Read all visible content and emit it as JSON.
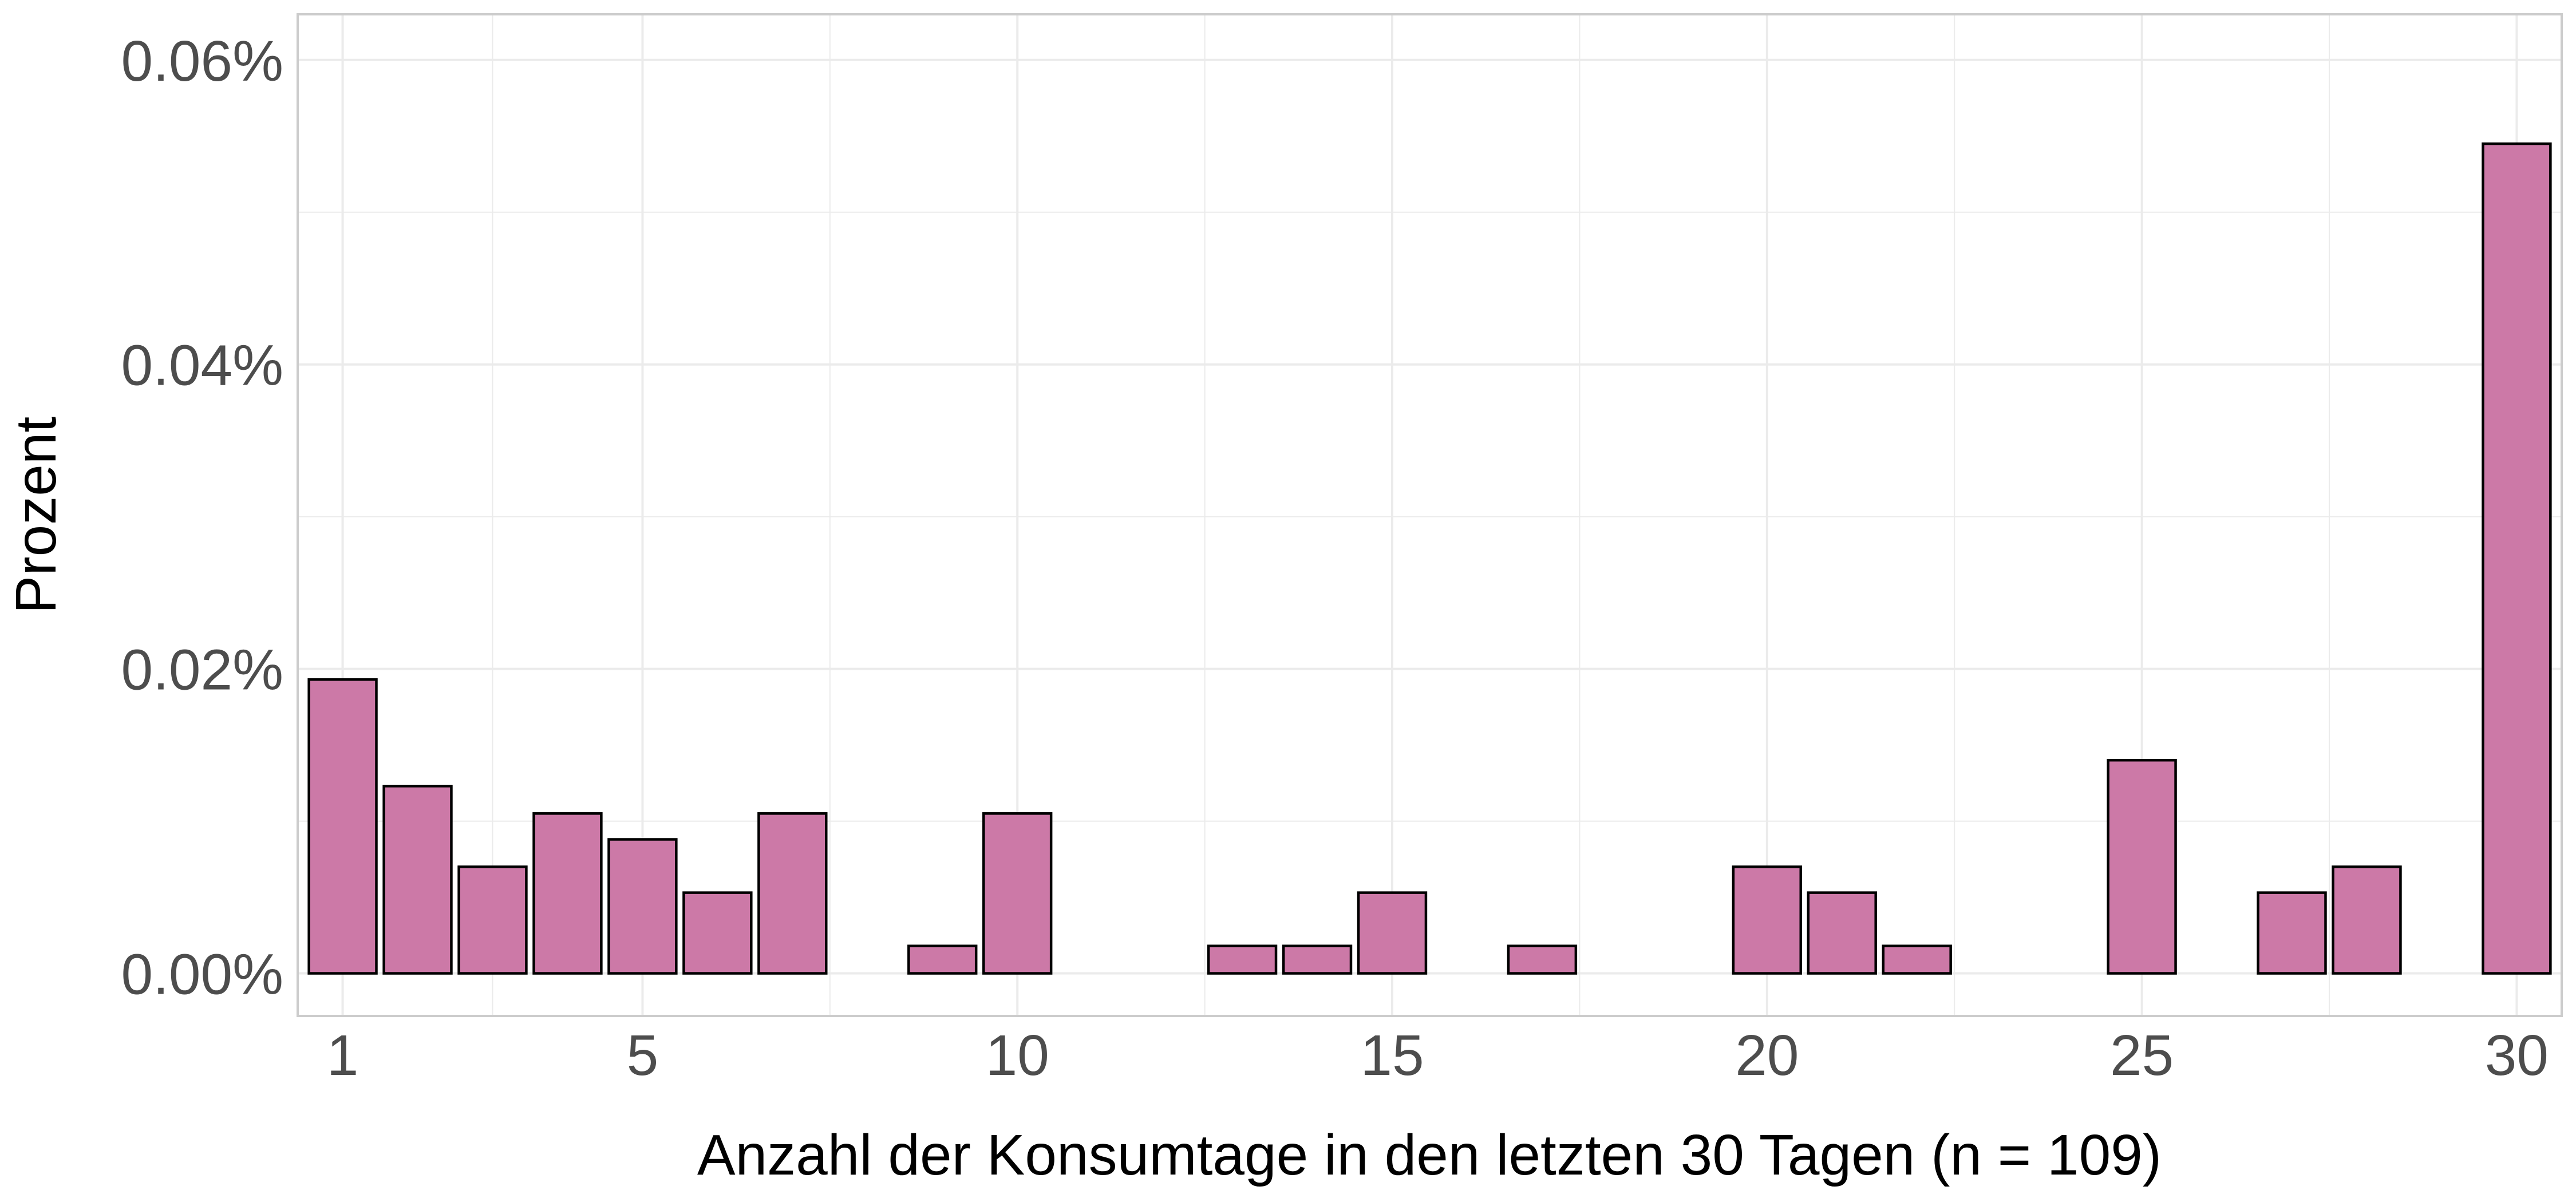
{
  "chart_data": {
    "type": "bar",
    "title": "",
    "xlabel": "Anzahl der Konsumtage in den letzten 30 Tagen (n = 109)",
    "ylabel": "Prozent",
    "x_ticks": [
      1,
      5,
      10,
      15,
      20,
      25,
      30
    ],
    "y_ticks": [
      0,
      0.02,
      0.04,
      0.06
    ],
    "y_tick_labels": [
      "0.00%",
      "0.02%",
      "0.04%",
      "0.06%"
    ],
    "xlim": [
      0.4,
      30.6
    ],
    "ylim": [
      -0.0028,
      0.063
    ],
    "grid": true,
    "colors": {
      "bar_fill": "#cc79a7",
      "bar_stroke": "#000000",
      "grid": "#ebebeb",
      "panel_border": "#cccccc"
    },
    "x": [
      1,
      2,
      3,
      4,
      5,
      6,
      7,
      9,
      10,
      13,
      14,
      15,
      17,
      20,
      21,
      22,
      25,
      27,
      28,
      30
    ],
    "values": [
      0.0193,
      0.0123,
      0.007,
      0.0105,
      0.0088,
      0.0053,
      0.0105,
      0.0018,
      0.0105,
      0.0018,
      0.0018,
      0.0053,
      0.0018,
      0.007,
      0.0053,
      0.0018,
      0.014,
      0.0053,
      0.007,
      0.0545
    ]
  }
}
